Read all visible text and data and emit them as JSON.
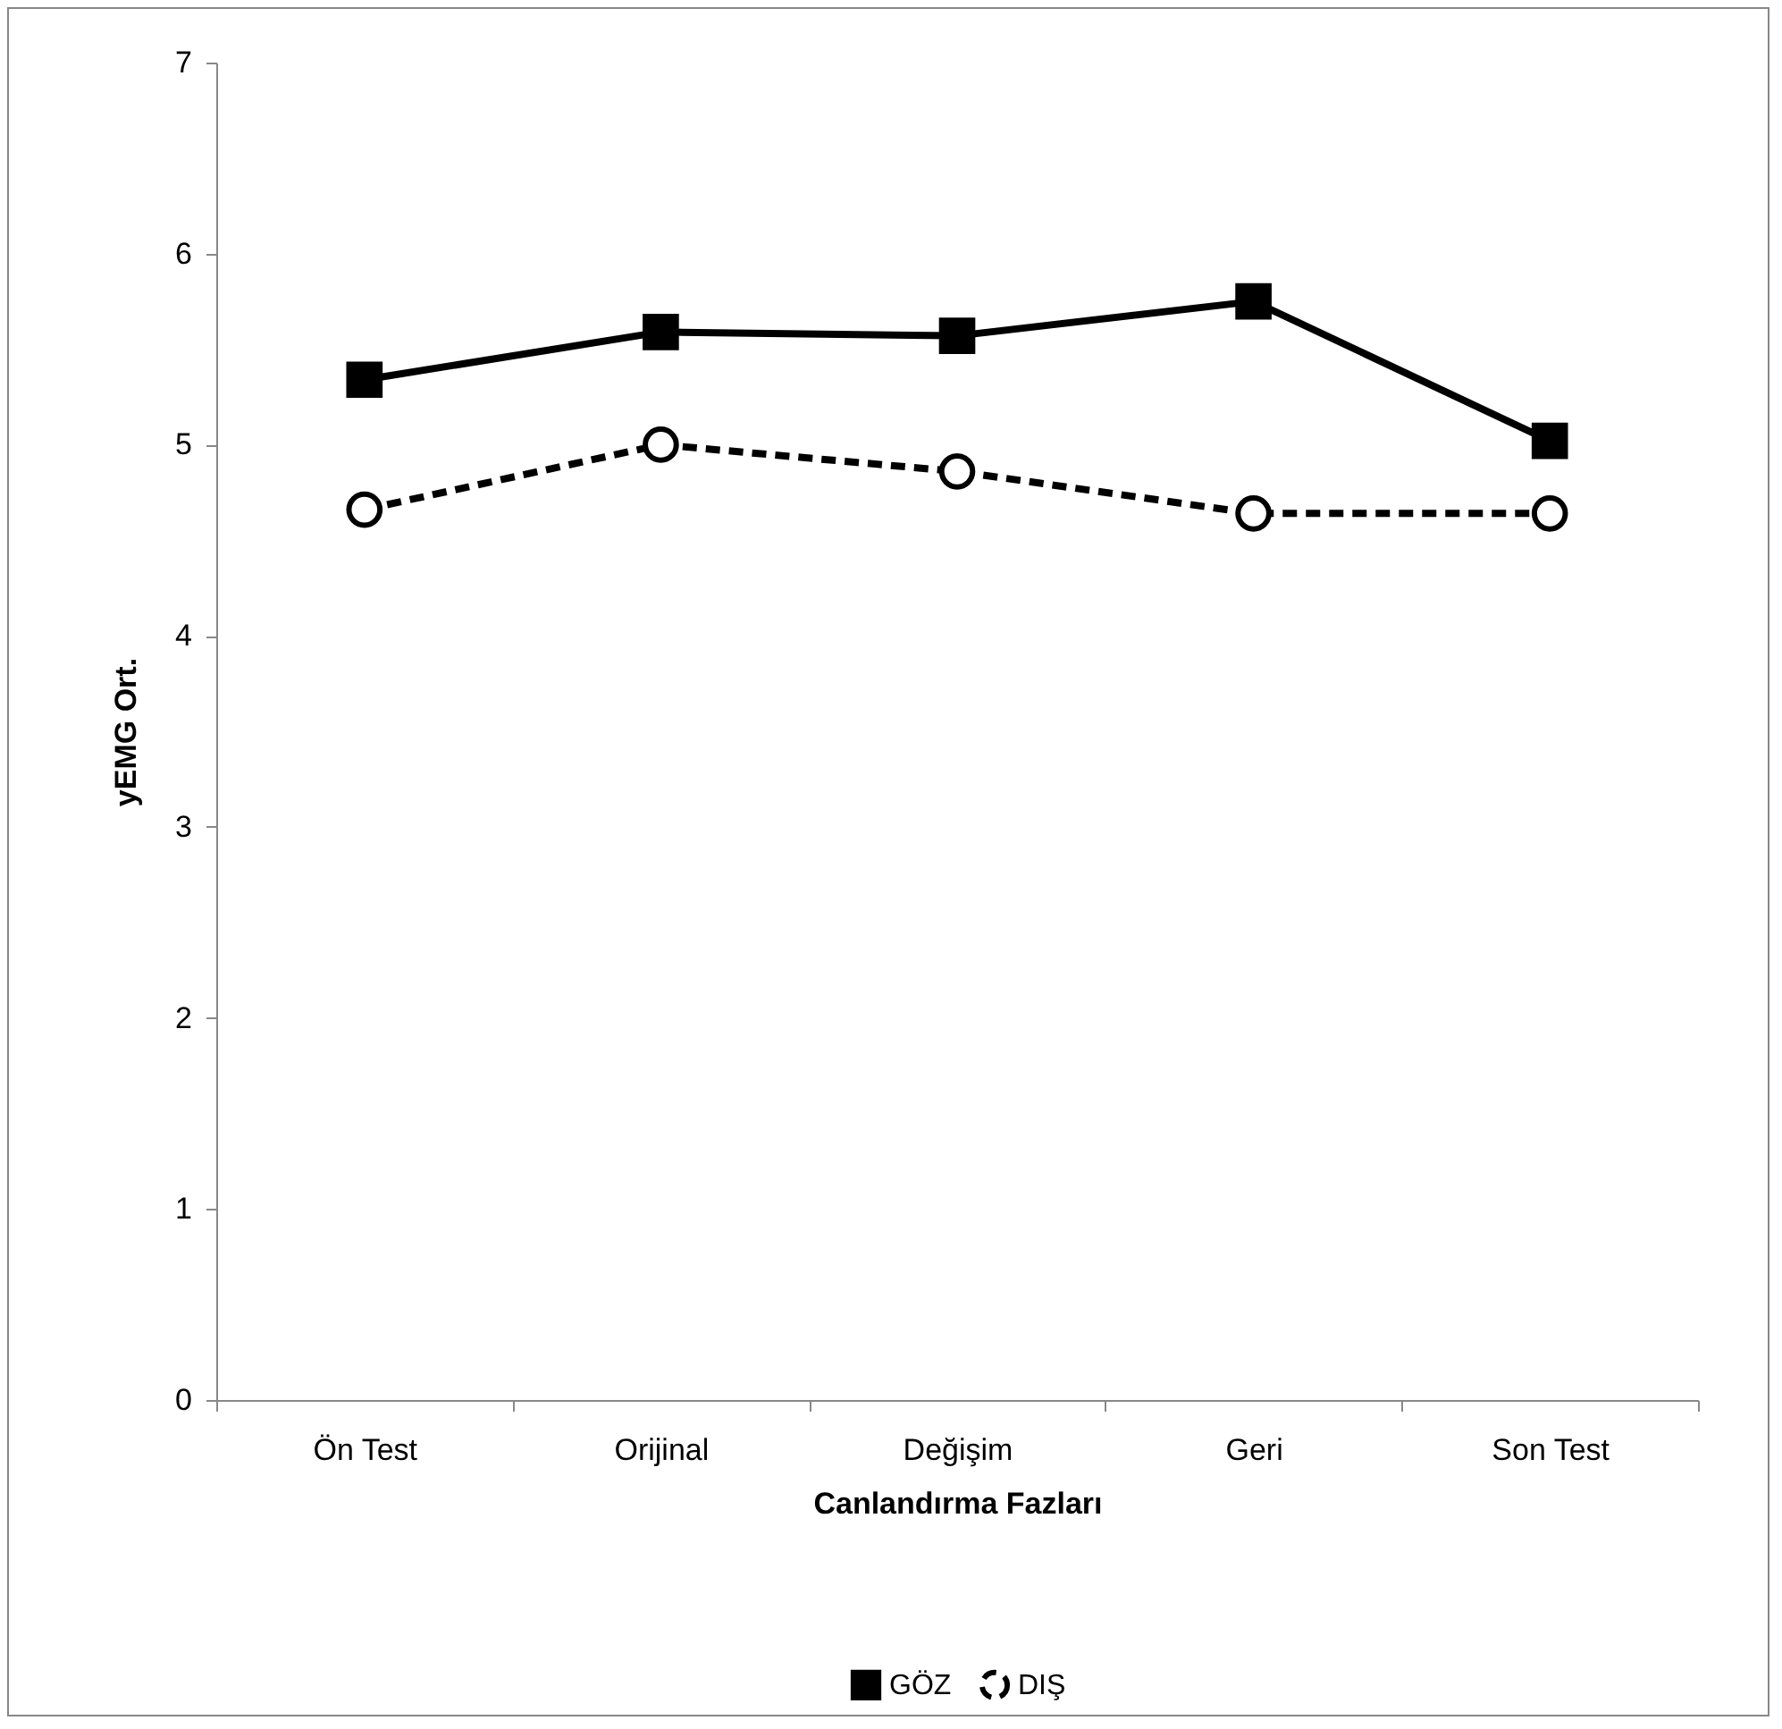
{
  "chart_data": {
    "type": "line",
    "xlabel": "Canlandırma Fazları",
    "ylabel": "yEMG Ort.",
    "categories": [
      "Ön Test",
      "Orijinal",
      "Değişim",
      "Geri",
      "Son Test"
    ],
    "series": [
      {
        "name": "GÖZ",
        "color": "#000000",
        "marker": "square",
        "line_style": "solid",
        "values": [
          5.34,
          5.59,
          5.57,
          5.75,
          5.02
        ]
      },
      {
        "name": "DIŞ",
        "color": "#000000",
        "marker": "circle",
        "line_style": "dashed",
        "values": [
          4.66,
          5.0,
          4.86,
          4.64,
          4.64
        ]
      }
    ],
    "ylim": [
      0,
      7
    ],
    "yticks": [
      0,
      1,
      2,
      3,
      4,
      5,
      6,
      7
    ],
    "grid": false,
    "legend": "bottom"
  }
}
